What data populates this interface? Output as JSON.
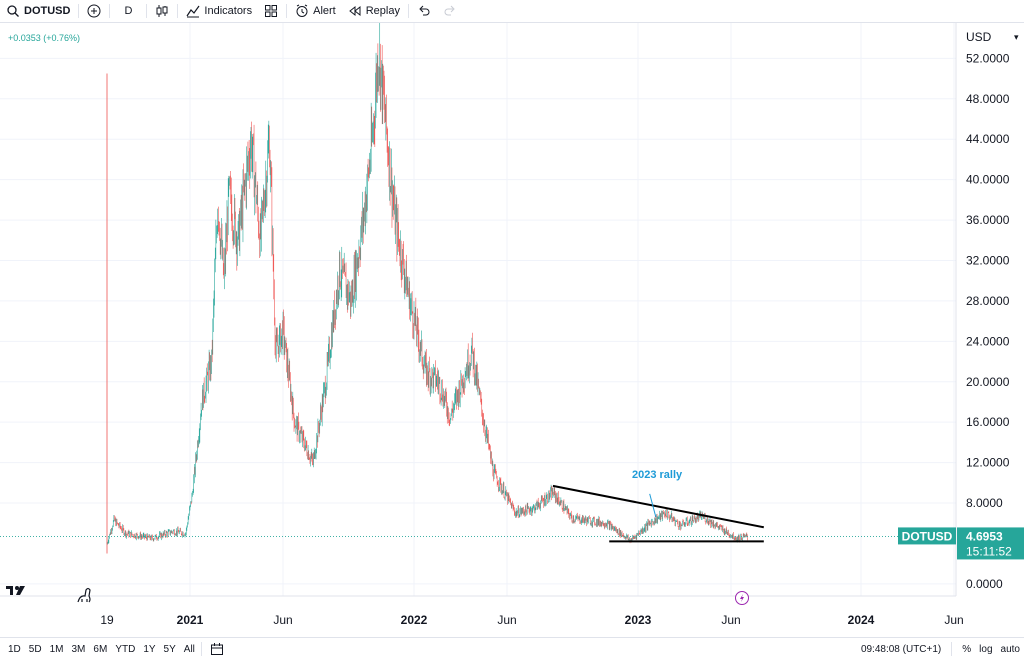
{
  "toolbar": {
    "symbol": "DOTUSD",
    "interval": "D",
    "indicators_label": "Indicators",
    "alert_label": "Alert",
    "replay_label": "Replay",
    "icons": [
      "search-icon",
      "add-symbol-icon",
      "candles-icon",
      "indicators-icon",
      "templates-icon",
      "alert-icon",
      "replay-icon",
      "undo-icon",
      "redo-icon"
    ]
  },
  "header": {
    "change": "+0.0353 (+0.76%)",
    "change_color": "#26a69a"
  },
  "colors": {
    "up": "#26a69a",
    "down": "#ef5350",
    "accent": "#26a69a",
    "annotation": "#1e9bd7",
    "trend": "#000000"
  },
  "chart_data": {
    "type": "candlestick",
    "currency": "USD",
    "y_ticks": [
      "52.0000",
      "48.0000",
      "44.0000",
      "40.0000",
      "36.0000",
      "32.0000",
      "28.0000",
      "24.0000",
      "20.0000",
      "16.0000",
      "12.0000",
      "8.0000",
      "0.0000"
    ],
    "ylim": [
      -1.2,
      55.5
    ],
    "x_ticks": [
      "19",
      "2021",
      "Jun",
      "2022",
      "Jun",
      "2023",
      "Jun",
      "2024",
      "Jun"
    ],
    "price_path": [
      {
        "date": "2020-08-21",
        "price": 4.0
      },
      {
        "date": "2020-09-01",
        "price": 6.3
      },
      {
        "date": "2020-09-20",
        "price": 5.0
      },
      {
        "date": "2020-11-01",
        "price": 4.5
      },
      {
        "date": "2020-12-05",
        "price": 5.2
      },
      {
        "date": "2020-12-25",
        "price": 5.0
      },
      {
        "date": "2021-01-05",
        "price": 9.0
      },
      {
        "date": "2021-01-20",
        "price": 18.0
      },
      {
        "date": "2021-02-05",
        "price": 22.0
      },
      {
        "date": "2021-02-15",
        "price": 38.0
      },
      {
        "date": "2021-02-25",
        "price": 30.0
      },
      {
        "date": "2021-03-05",
        "price": 38.5
      },
      {
        "date": "2021-03-20",
        "price": 34.0
      },
      {
        "date": "2021-04-10",
        "price": 44.0
      },
      {
        "date": "2021-04-25",
        "price": 34.0
      },
      {
        "date": "2021-05-10",
        "price": 44.0
      },
      {
        "date": "2021-05-20",
        "price": 23.0
      },
      {
        "date": "2021-06-01",
        "price": 25.0
      },
      {
        "date": "2021-06-20",
        "price": 16.0
      },
      {
        "date": "2021-07-20",
        "price": 12.0
      },
      {
        "date": "2021-08-10",
        "price": 20.0
      },
      {
        "date": "2021-09-01",
        "price": 31.0
      },
      {
        "date": "2021-09-20",
        "price": 28.0
      },
      {
        "date": "2021-10-10",
        "price": 36.0
      },
      {
        "date": "2021-10-25",
        "price": 44.0
      },
      {
        "date": "2021-11-04",
        "price": 53.0
      },
      {
        "date": "2021-11-15",
        "price": 46.0
      },
      {
        "date": "2021-12-01",
        "price": 36.0
      },
      {
        "date": "2021-12-25",
        "price": 28.0
      },
      {
        "date": "2022-01-20",
        "price": 21.0
      },
      {
        "date": "2022-02-10",
        "price": 20.0
      },
      {
        "date": "2022-03-01",
        "price": 16.5
      },
      {
        "date": "2022-03-25",
        "price": 21.0
      },
      {
        "date": "2022-04-05",
        "price": 23.0
      },
      {
        "date": "2022-04-20",
        "price": 17.5
      },
      {
        "date": "2022-05-10",
        "price": 11.0
      },
      {
        "date": "2022-06-15",
        "price": 7.0
      },
      {
        "date": "2022-07-15",
        "price": 7.5
      },
      {
        "date": "2022-08-15",
        "price": 9.0
      },
      {
        "date": "2022-09-15",
        "price": 6.5
      },
      {
        "date": "2022-11-10",
        "price": 6.0
      },
      {
        "date": "2022-12-20",
        "price": 4.3
      },
      {
        "date": "2023-01-20",
        "price": 6.0
      },
      {
        "date": "2023-02-15",
        "price": 7.0
      },
      {
        "date": "2023-03-10",
        "price": 5.8
      },
      {
        "date": "2023-04-15",
        "price": 6.7
      },
      {
        "date": "2023-05-20",
        "price": 5.3
      },
      {
        "date": "2023-06-10",
        "price": 4.5
      },
      {
        "date": "2023-06-28",
        "price": 4.7
      }
    ],
    "annotations": [
      {
        "type": "trendline",
        "from": {
          "date": "2022-08-15",
          "price": 9.7
        },
        "to": {
          "date": "2023-07-25",
          "price": 5.6
        }
      },
      {
        "type": "trendline",
        "from": {
          "date": "2022-11-15",
          "price": 4.2
        },
        "to": {
          "date": "2023-07-25",
          "price": 4.2
        }
      },
      {
        "type": "arrow",
        "from": {
          "date": "2023-01-20",
          "price": 8.9
        },
        "to": {
          "date": "2023-01-30",
          "price": 6.6
        }
      },
      {
        "type": "text",
        "text": "2023 rally",
        "date": "2023-02-01",
        "price": 10.5
      }
    ],
    "last": {
      "symbol": "DOTUSD",
      "price": "4.6953",
      "countdown": "15:11:52"
    }
  },
  "bottom": {
    "ranges": [
      "1D",
      "5D",
      "1M",
      "3M",
      "6M",
      "YTD",
      "1Y",
      "5Y",
      "All"
    ],
    "time": "09:48:08 (UTC+1)",
    "percent_label": "%",
    "log_label": "log",
    "auto_label": "auto"
  }
}
